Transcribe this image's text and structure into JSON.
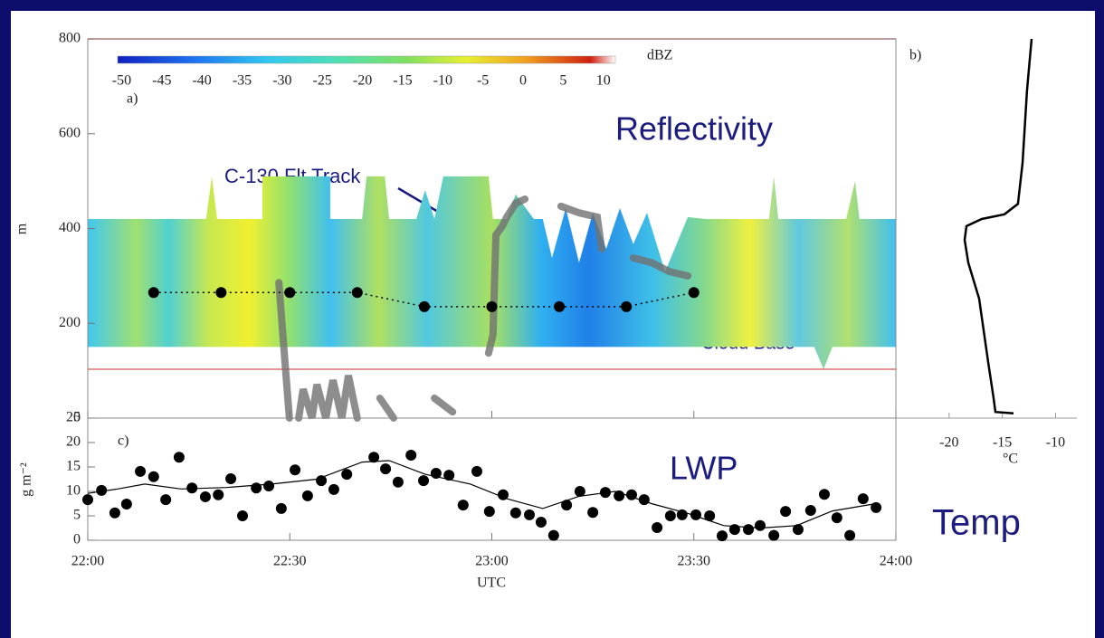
{
  "chart_data": [
    {
      "type": "contour",
      "label": "a)",
      "title": "Reflectivity",
      "ylabel": "m",
      "xlim": [
        22,
        24
      ],
      "xticks": [
        22,
        22.5,
        23,
        23.5,
        24
      ],
      "ylim": [
        0,
        800
      ],
      "yticks": [
        0,
        200,
        400,
        600,
        800
      ],
      "colorbar": {
        "label": "dBZ",
        "lim": [
          -50.5,
          11.5
        ],
        "ticks": [
          -50,
          -45,
          -40,
          -35,
          -30,
          -25,
          -20,
          -15,
          -10,
          -5,
          0,
          5,
          10
        ]
      },
      "cloud": {
        "x": [
          22.0,
          22.293,
          22.307,
          22.32,
          22.432,
          22.432,
          22.6,
          22.6,
          22.679,
          22.69,
          22.735,
          22.746,
          22.813,
          22.835,
          22.858,
          22.88,
          22.992,
          23.003,
          23.037,
          23.059,
          23.104,
          23.126,
          23.149,
          23.183,
          23.216,
          23.25,
          23.283,
          23.317,
          23.35,
          23.384,
          23.429,
          23.485,
          23.53,
          23.686,
          23.698,
          23.709,
          23.877,
          23.899,
          23.91,
          24.0
        ],
        "top": [
          420,
          420,
          510,
          420,
          420,
          510,
          510,
          420,
          420,
          510,
          510,
          420,
          420,
          481,
          420,
          510,
          510,
          420,
          420,
          472,
          420,
          420,
          338,
          443,
          328,
          433,
          357,
          443,
          367,
          433,
          309,
          424,
          420,
          420,
          510,
          420,
          420,
          500,
          420,
          420
        ],
        "base_x": [
          22.0,
          23.798,
          23.821,
          23.843,
          24.0
        ],
        "base": [
          150,
          150,
          103,
          150,
          150
        ]
      },
      "hlines": {
        "values": [
          800,
          103
        ],
        "color": "#e07070"
      },
      "flight_level": {
        "color": "#000000",
        "x": [
          22.163,
          22.33,
          22.5,
          22.667,
          22.833,
          23.0,
          23.167,
          23.333,
          23.5
        ],
        "values": [
          265,
          265,
          265,
          265,
          235,
          235,
          235,
          235,
          265
        ]
      },
      "aircraft": {
        "color": "#707070",
        "x": [
          22.473,
          22.488,
          22.499,
          null,
          22.522,
          22.533,
          22.555,
          22.567,
          22.589,
          22.607,
          22.629,
          22.645,
          22.667,
          null,
          22.723,
          22.757,
          null,
          22.858,
          22.903,
          null,
          22.992,
          23.003,
          23.01,
          23.026,
          23.037,
          23.059,
          23.082,
          null,
          23.171,
          23.216,
          23.261,
          23.272,
          null,
          23.35,
          23.395,
          23.44,
          23.485
        ],
        "values": [
          286,
          118,
          0,
          null,
          0,
          61,
          0,
          71,
          0,
          80,
          0,
          90,
          0,
          null,
          42,
          0,
          null,
          42,
          13,
          null,
          137,
          176,
          386,
          405,
          424,
          453,
          462,
          null,
          447,
          433,
          424,
          357,
          null,
          338,
          328,
          309,
          300
        ]
      },
      "annotations": [
        "C-130 Flt Track",
        "Cloud Base"
      ]
    },
    {
      "type": "line",
      "label": "b)",
      "title": "Temp",
      "xlabel": "°C",
      "xlim": [
        -25,
        -8
      ],
      "xticks": [
        -20,
        -15,
        -10
      ],
      "ylim": [
        0,
        800
      ],
      "x": [
        -13.95,
        -15.65,
        -15.82,
        -16.33,
        -17.18,
        -18.2,
        -18.54,
        -18.37,
        -16.93,
        -14.8,
        -13.53,
        -13.1,
        -12.68,
        -12.25
      ],
      "values": [
        10,
        13,
        42,
        118,
        252,
        328,
        376,
        405,
        420,
        430,
        452,
        538,
        691,
        800
      ],
      "color": "#000000"
    },
    {
      "type": "scatter",
      "label": "c)",
      "title": "LWP",
      "ylabel": "g m⁻²",
      "xlabel": "UTC",
      "xlim": [
        22,
        24
      ],
      "xticks": [
        {
          "value": 22,
          "label": "22:00"
        },
        {
          "value": 22.5,
          "label": "22:30"
        },
        {
          "value": 23,
          "label": "23:00"
        },
        {
          "value": 23.5,
          "label": "23:30"
        },
        {
          "value": 24,
          "label": "24:00"
        }
      ],
      "ylim": [
        0,
        25
      ],
      "yticks": [
        0,
        5,
        10,
        15,
        20,
        25
      ],
      "x": [
        22.0,
        22.034,
        22.067,
        22.096,
        22.13,
        22.163,
        22.193,
        22.226,
        22.258,
        22.291,
        22.323,
        22.354,
        22.383,
        22.417,
        22.448,
        22.479,
        22.513,
        22.544,
        22.578,
        22.609,
        22.641,
        22.708,
        22.737,
        22.768,
        22.8,
        22.831,
        22.862,
        22.894,
        22.929,
        22.963,
        22.994,
        23.028,
        23.059,
        23.093,
        23.122,
        23.153,
        23.185,
        23.218,
        23.25,
        23.281,
        23.315,
        23.346,
        23.377,
        23.409,
        23.442,
        23.471,
        23.505,
        23.539,
        23.57,
        23.601,
        23.635,
        23.664,
        23.698,
        23.727,
        23.758,
        23.789,
        23.823,
        23.854,
        23.886,
        23.919,
        23.951
      ],
      "values": [
        8.3,
        10.2,
        5.6,
        7.4,
        14.1,
        13.0,
        8.3,
        17.0,
        10.7,
        8.9,
        9.3,
        12.6,
        5.0,
        10.7,
        11.1,
        6.5,
        14.4,
        9.1,
        12.2,
        10.4,
        13.5,
        17.0,
        14.6,
        11.9,
        17.4,
        12.2,
        13.7,
        13.3,
        7.2,
        14.1,
        5.9,
        9.3,
        5.6,
        5.2,
        3.7,
        1.0,
        7.2,
        10.0,
        5.7,
        9.8,
        9.1,
        9.3,
        8.3,
        2.6,
        5.0,
        5.2,
        5.2,
        5.0,
        0.9,
        2.2,
        2.2,
        3.0,
        1.0,
        5.9,
        2.2,
        6.1,
        9.4,
        4.6,
        1.0,
        8.5,
        6.7
      ],
      "color": "#000000",
      "smooth": {
        "x": [
          22.0,
          22.074,
          22.141,
          22.231,
          22.343,
          22.455,
          22.567,
          22.679,
          22.746,
          22.835,
          22.947,
          23.037,
          23.126,
          23.216,
          23.306,
          23.395,
          23.485,
          23.574,
          23.664,
          23.754,
          23.843,
          23.951
        ],
        "values": [
          9.6,
          10.5,
          11.5,
          10.5,
          10.8,
          11.5,
          12.5,
          16.0,
          16.3,
          13.5,
          11.5,
          8.5,
          6.5,
          9.0,
          10.0,
          7.5,
          5.5,
          3.0,
          2.5,
          3.0,
          6.0,
          7.5
        ]
      }
    }
  ]
}
